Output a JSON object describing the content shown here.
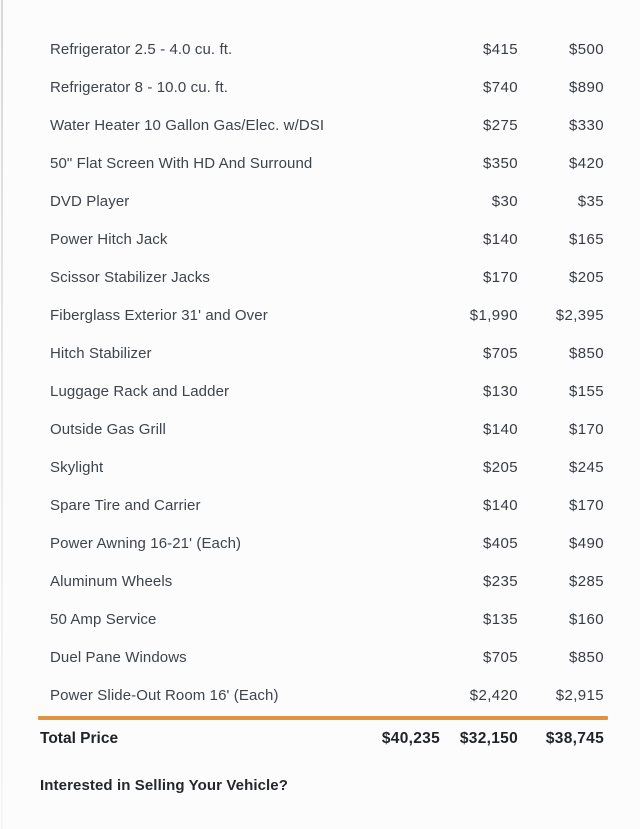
{
  "table": {
    "rows": [
      {
        "item": "Refrigerator 2.5 - 4.0 cu. ft.",
        "price_a": "$415",
        "price_b": "$500"
      },
      {
        "item": "Refrigerator 8 - 10.0 cu. ft.",
        "price_a": "$740",
        "price_b": "$890"
      },
      {
        "item": "Water Heater 10 Gallon Gas/Elec. w/DSI",
        "price_a": "$275",
        "price_b": "$330"
      },
      {
        "item": "50\" Flat Screen With HD And Surround",
        "price_a": "$350",
        "price_b": "$420"
      },
      {
        "item": "DVD Player",
        "price_a": "$30",
        "price_b": "$35"
      },
      {
        "item": "Power Hitch Jack",
        "price_a": "$140",
        "price_b": "$165"
      },
      {
        "item": "Scissor Stabilizer Jacks",
        "price_a": "$170",
        "price_b": "$205"
      },
      {
        "item": "Fiberglass Exterior 31' and Over",
        "price_a": "$1,990",
        "price_b": "$2,395"
      },
      {
        "item": "Hitch Stabilizer",
        "price_a": "$705",
        "price_b": "$850"
      },
      {
        "item": "Luggage Rack and Ladder",
        "price_a": "$130",
        "price_b": "$155"
      },
      {
        "item": "Outside Gas Grill",
        "price_a": "$140",
        "price_b": "$170"
      },
      {
        "item": "Skylight",
        "price_a": "$205",
        "price_b": "$245"
      },
      {
        "item": "Spare Tire and Carrier",
        "price_a": "$140",
        "price_b": "$170"
      },
      {
        "item": "Power Awning 16-21' (Each)",
        "price_a": "$405",
        "price_b": "$490"
      },
      {
        "item": "Aluminum Wheels",
        "price_a": "$235",
        "price_b": "$285"
      },
      {
        "item": "50 Amp Service",
        "price_a": "$135",
        "price_b": "$160"
      },
      {
        "item": "Duel Pane Windows",
        "price_a": "$705",
        "price_b": "$850"
      },
      {
        "item": "Power Slide-Out Room 16' (Each)",
        "price_a": "$2,420",
        "price_b": "$2,915"
      }
    ],
    "total": {
      "label": "Total Price",
      "values": [
        "$40,235",
        "$32,150",
        "$38,745"
      ]
    }
  },
  "footer": {
    "heading": "Interested in Selling Your Vehicle?"
  },
  "colors": {
    "accent": "#E0923F",
    "row_text": "#3E444B",
    "bold_text": "#1F2328",
    "background": "#FCFCFC"
  }
}
